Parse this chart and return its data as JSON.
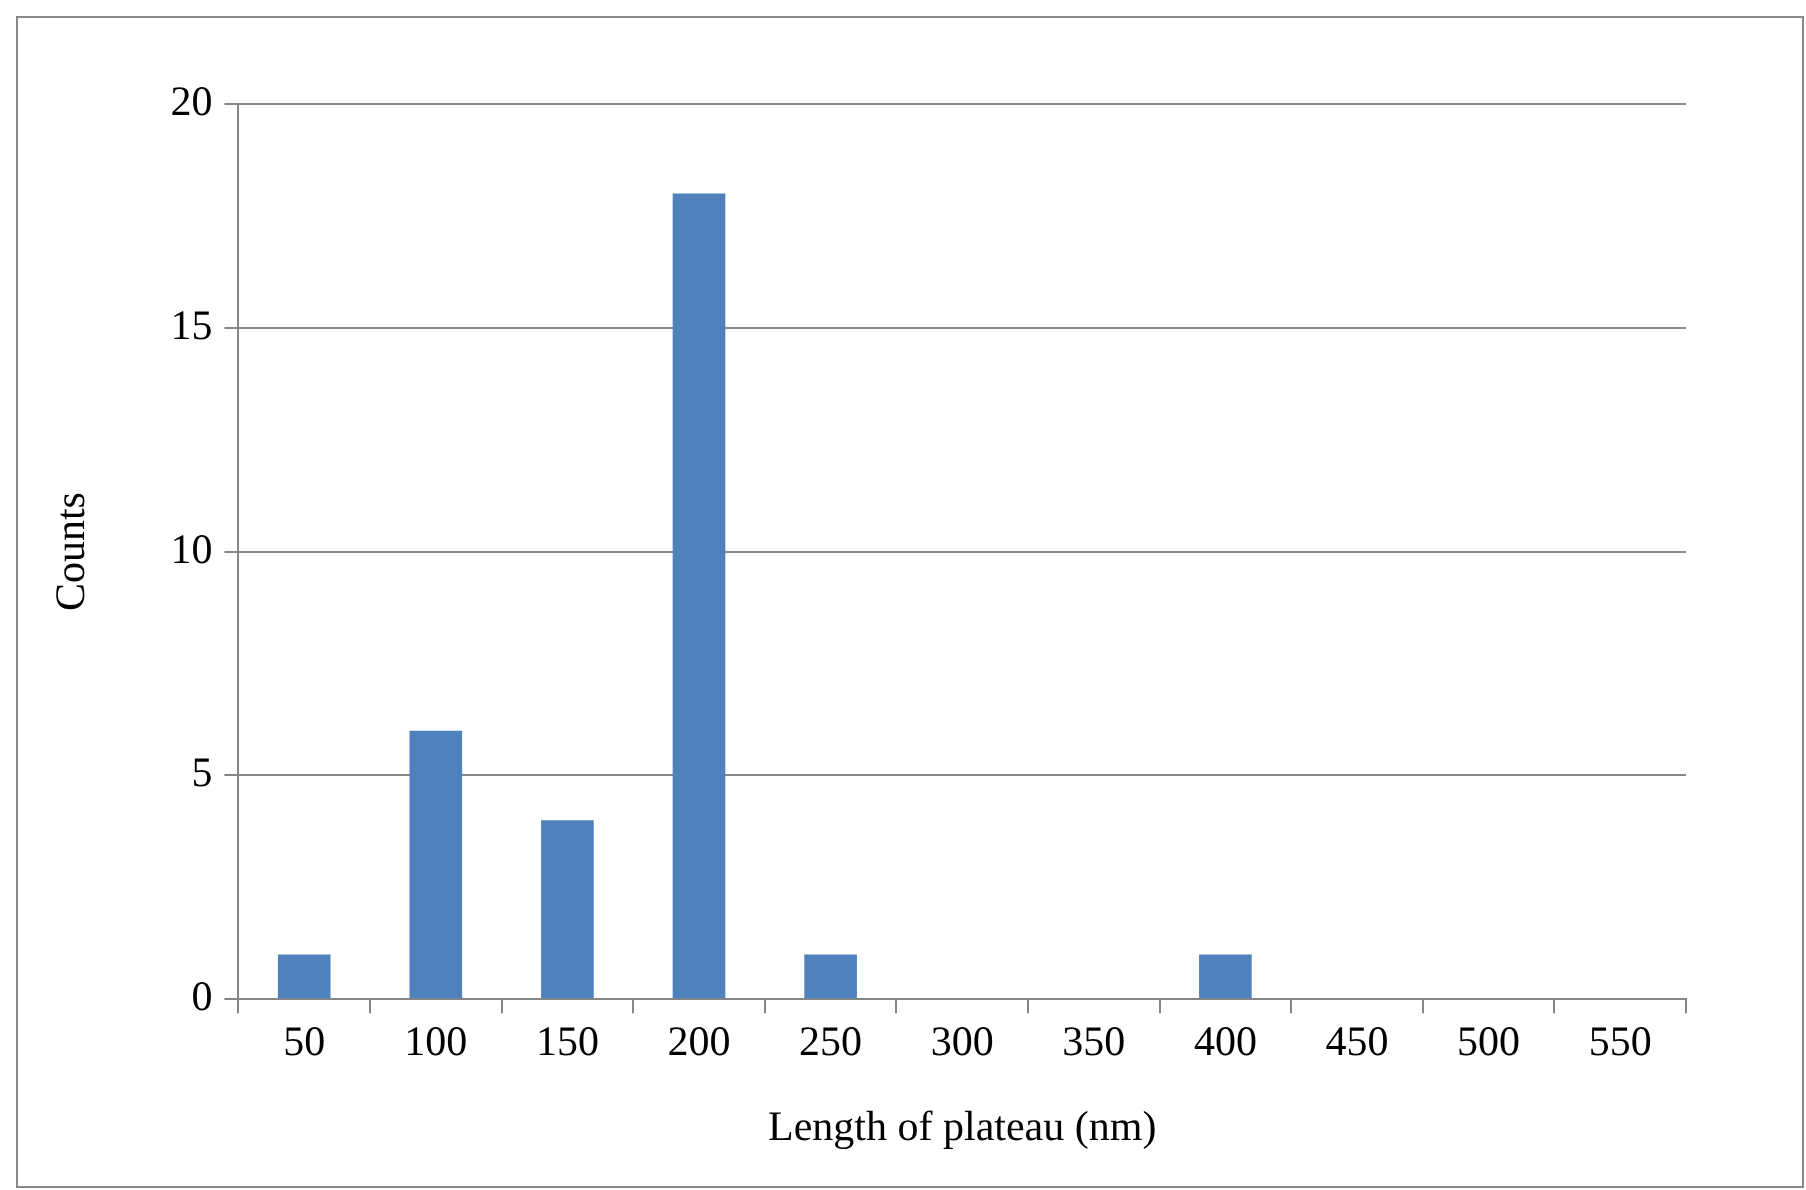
{
  "chart_data": {
    "type": "bar",
    "xlabel": "Length of plateau (nm)",
    "ylabel": "Counts",
    "categories": [
      "50",
      "100",
      "150",
      "200",
      "250",
      "300",
      "350",
      "400",
      "450",
      "500",
      "550"
    ],
    "values": [
      1,
      6,
      4,
      18,
      1,
      0,
      0,
      1,
      0,
      0,
      0
    ],
    "color": "#4f81bd",
    "ylim": [
      0,
      20
    ],
    "yticks": [
      0,
      5,
      10,
      15,
      20
    ],
    "grid": "y"
  }
}
